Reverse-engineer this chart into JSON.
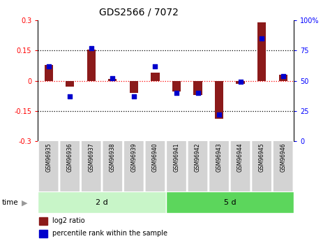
{
  "title": "GDS2566 / 7072",
  "samples": [
    "GSM96935",
    "GSM96936",
    "GSM96937",
    "GSM96938",
    "GSM96939",
    "GSM96940",
    "GSM96941",
    "GSM96942",
    "GSM96943",
    "GSM96944",
    "GSM96945",
    "GSM96946"
  ],
  "log2_ratio": [
    0.08,
    -0.03,
    0.155,
    0.01,
    -0.06,
    0.04,
    -0.055,
    -0.07,
    -0.19,
    -0.015,
    0.29,
    0.03
  ],
  "pct_rank": [
    62,
    37,
    77,
    52,
    37,
    62,
    40,
    40,
    22,
    49,
    85,
    54
  ],
  "group_labels": [
    "2 d",
    "5 d"
  ],
  "group_sizes": [
    6,
    6
  ],
  "group_colors_light": [
    "#c8f5c8",
    "#5cd65c"
  ],
  "bar_color": "#8b1a1a",
  "dot_color": "#0000cc",
  "ylim": [
    -0.3,
    0.3
  ],
  "pct_ylim": [
    0,
    100
  ],
  "yticks_left": [
    -0.3,
    -0.15,
    0,
    0.15,
    0.3
  ],
  "yticks_left_labels": [
    "-0.3",
    "-0.15",
    "0",
    "0.15",
    "0.3"
  ],
  "yticks_right": [
    0,
    25,
    50,
    75,
    100
  ],
  "yticks_right_labels": [
    "0",
    "25",
    "50",
    "75",
    "100%"
  ],
  "hlines_dotted": [
    0.15,
    -0.15
  ],
  "title_fontsize": 10,
  "tick_fontsize": 7,
  "sample_fontsize": 5.5,
  "group_fontsize": 8,
  "legend_fontsize": 7
}
